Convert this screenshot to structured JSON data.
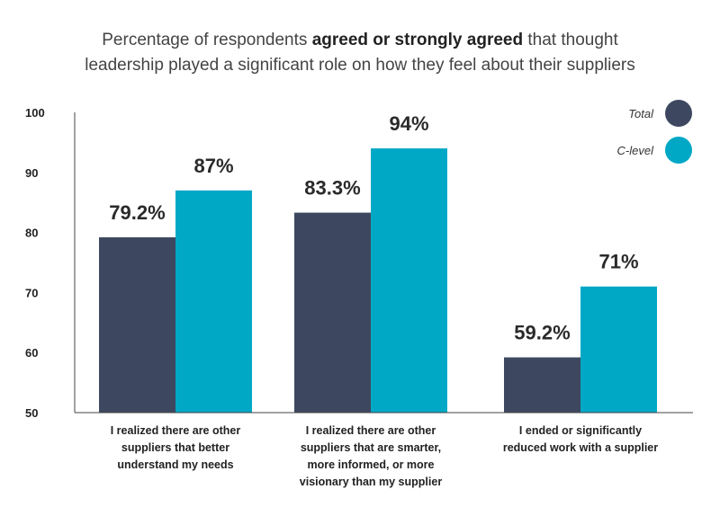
{
  "chart_data": {
    "type": "bar",
    "title": {
      "line1_pre": "Percentage of respondents ",
      "line1_bold": "agreed or strongly agreed",
      "line1_post": " that thought",
      "line2": "leadership played a significant role on how they feel about their suppliers"
    },
    "categories": [
      [
        "I realized there are other",
        "suppliers that better",
        "understand my needs"
      ],
      [
        "I realized there are other",
        "suppliers that are smarter,",
        "more informed, or more",
        "visionary than my supplier"
      ],
      [
        "I ended or significantly",
        "reduced work with a supplier"
      ]
    ],
    "series": [
      {
        "name": "Total",
        "color": "#3d4860",
        "values": [
          79.2,
          83.3,
          59.2
        ],
        "labels": [
          "79.2%",
          "83.3%",
          "59.2%"
        ]
      },
      {
        "name": "C-level",
        "color": "#00a8c6",
        "values": [
          87,
          94,
          71
        ],
        "labels": [
          "87%",
          "94%",
          "71%"
        ]
      }
    ],
    "ylim": [
      50,
      100
    ],
    "yticks": [
      "50",
      "60",
      "70",
      "80",
      "90",
      "100"
    ],
    "xlabel": "",
    "ylabel": "",
    "grid": false,
    "legend": "top-right"
  }
}
